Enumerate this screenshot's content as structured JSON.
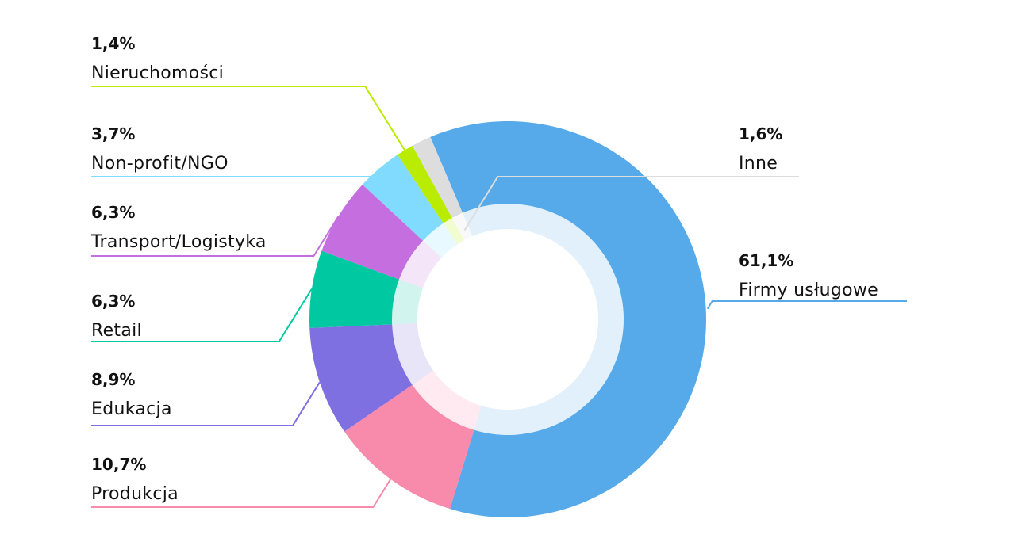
{
  "chart_data": {
    "type": "pie",
    "donut": true,
    "legend": "none",
    "slices": [
      {
        "label": "Firmy usługowe",
        "value": 61.1,
        "value_text": "61,1%",
        "color": "#56aaea"
      },
      {
        "label": "Produkcja",
        "value": 10.7,
        "value_text": "10,7%",
        "color": "#f88aab"
      },
      {
        "label": "Edukacja",
        "value": 8.9,
        "value_text": "8,9%",
        "color": "#7e70e0"
      },
      {
        "label": "Retail",
        "value": 6.3,
        "value_text": "6,3%",
        "color": "#00c9a2"
      },
      {
        "label": "Transport/Logistyka",
        "value": 6.3,
        "value_text": "6,3%",
        "color": "#c56ee0"
      },
      {
        "label": "Non-profit/NGO",
        "value": 3.7,
        "value_text": "3,7%",
        "color": "#80dbff"
      },
      {
        "label": "Nieruchomości",
        "value": 1.4,
        "value_text": "1,4%",
        "color": "#b9ec00"
      },
      {
        "label": "Inne",
        "value": 1.6,
        "value_text": "1,6%",
        "color": "#dddddd"
      }
    ]
  }
}
